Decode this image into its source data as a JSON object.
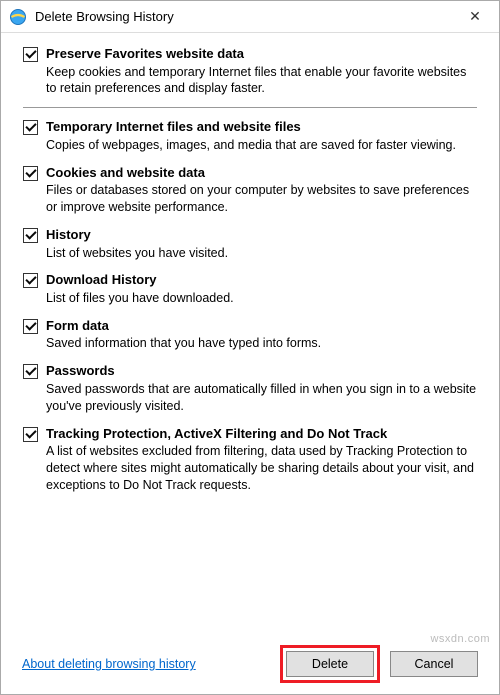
{
  "window": {
    "title": "Delete Browsing History",
    "close_glyph": "✕"
  },
  "options": [
    {
      "id": "preserve-favorites",
      "checked": true,
      "title": "Preserve Favorites website data",
      "desc": "Keep cookies and temporary Internet files that enable your favorite websites to retain preferences and display faster.",
      "divider_after": true
    },
    {
      "id": "temp-files",
      "checked": true,
      "title": "Temporary Internet files and website files",
      "desc": "Copies of webpages, images, and media that are saved for faster viewing."
    },
    {
      "id": "cookies",
      "checked": true,
      "title": "Cookies and website data",
      "desc": "Files or databases stored on your computer by websites to save preferences or improve website performance."
    },
    {
      "id": "history",
      "checked": true,
      "title": "History",
      "desc": "List of websites you have visited."
    },
    {
      "id": "download-history",
      "checked": true,
      "title": "Download History",
      "desc": "List of files you have downloaded."
    },
    {
      "id": "form-data",
      "checked": true,
      "title": "Form data",
      "desc": "Saved information that you have typed into forms."
    },
    {
      "id": "passwords",
      "checked": true,
      "title": "Passwords",
      "desc": "Saved passwords that are automatically filled in when you sign in to a website you've previously visited."
    },
    {
      "id": "tracking-protection",
      "checked": true,
      "title": "Tracking Protection, ActiveX Filtering and Do Not Track",
      "desc": "A list of websites excluded from filtering, data used by Tracking Protection to detect where sites might automatically be sharing details about your visit, and exceptions to Do Not Track requests."
    }
  ],
  "footer": {
    "help_link": "About deleting browsing history",
    "delete_label": "Delete",
    "cancel_label": "Cancel"
  },
  "watermark": "wsxdn.com",
  "style": {
    "highlight_color": "#ee1c25",
    "link_color": "#0066cc",
    "button_bg": "#e1e1e1"
  }
}
